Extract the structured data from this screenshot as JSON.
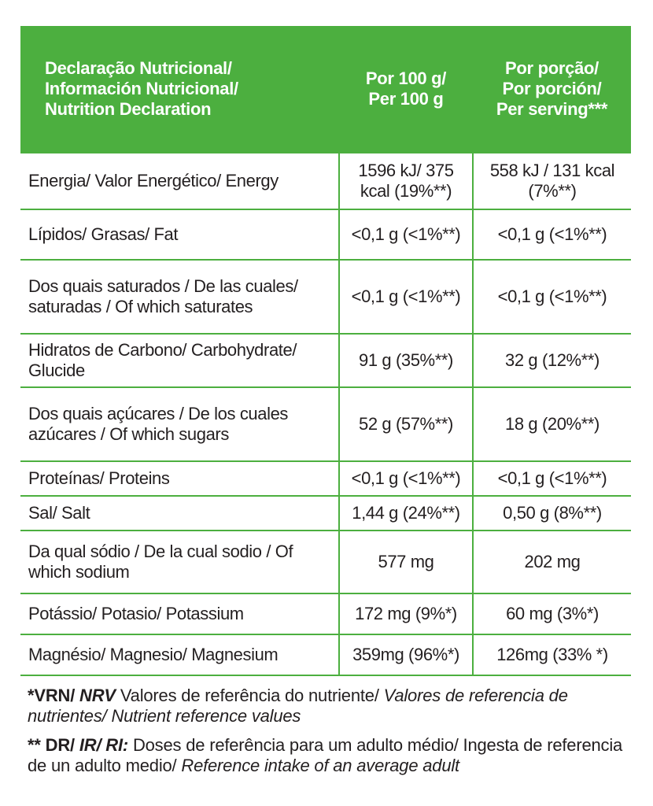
{
  "header": {
    "col1_lines": [
      "Declaração Nutricional/",
      "Información Nutricional/",
      "Nutrition Declaration"
    ],
    "col2_lines": [
      "Por 100 g/",
      "Per 100 g"
    ],
    "col3_lines": [
      "Por porção/",
      "Por porción/",
      "Per serving***"
    ]
  },
  "rows": [
    {
      "name": "Energia/ Valor Energético/ Energy",
      "per100": "1596 kJ/ 375 kcal (19%**)",
      "serving": "558 kJ / 131 kcal (7%**)"
    },
    {
      "name": "Lípidos/ Grasas/ Fat",
      "per100": "<0,1 g (<1%**)",
      "serving": "<0,1 g (<1%**)"
    },
    {
      "name": "Dos quais saturados / De las cuales/ saturadas / Of which saturates",
      "per100": "<0,1 g (<1%**)",
      "serving": "<0,1 g (<1%**)"
    },
    {
      "name": "Hidratos de Carbono/ Carbohydrate/ Glucide",
      "per100": "91 g (35%**)",
      "serving": "32 g (12%**)"
    },
    {
      "name": "Dos quais açúcares / De los cuales azúcares / Of which sugars",
      "per100": "52 g (57%**)",
      "serving": "18 g (20%**)"
    },
    {
      "name": "Proteínas/ Proteins",
      "per100": "<0,1 g (<1%**)",
      "serving": "<0,1 g (<1%**)"
    },
    {
      "name": "Sal/ Salt",
      "per100": "1,44 g (24%**)",
      "serving": "0,50 g (8%**)"
    },
    {
      "name": "Da qual sódio / De la cual sodio / Of which sodium",
      "per100": "577 mg",
      "serving": "202 mg"
    },
    {
      "name": "Potássio/ Potasio/ Potassium",
      "per100": "172 mg (9%*)",
      "serving": "60 mg (3%*)"
    },
    {
      "name": "Magnésio/ Magnesio/ Magnesium",
      "per100": "359mg (96%*)",
      "serving": "126mg (33% *)"
    }
  ],
  "footnotes": {
    "vrn": {
      "abbr_pt": "*VRN/",
      "abbr_en": "NRV",
      "text_pt": "Valores de referência do nutriente/",
      "text_es_en": "Valores de referencia de nutrientes/ Nutrient reference values"
    },
    "dr": {
      "abbr_pt": "** DR/",
      "abbr_es_en": "IR/ RI:",
      "text_pt": "Doses de referência para um adulto médio/ Ingesta de referencia de un adulto medio/",
      "text_en": "Reference intake of an average adult"
    }
  },
  "colors": {
    "accent_green": "#4caf3f",
    "text": "#231f20",
    "header_text": "#ffffff"
  }
}
